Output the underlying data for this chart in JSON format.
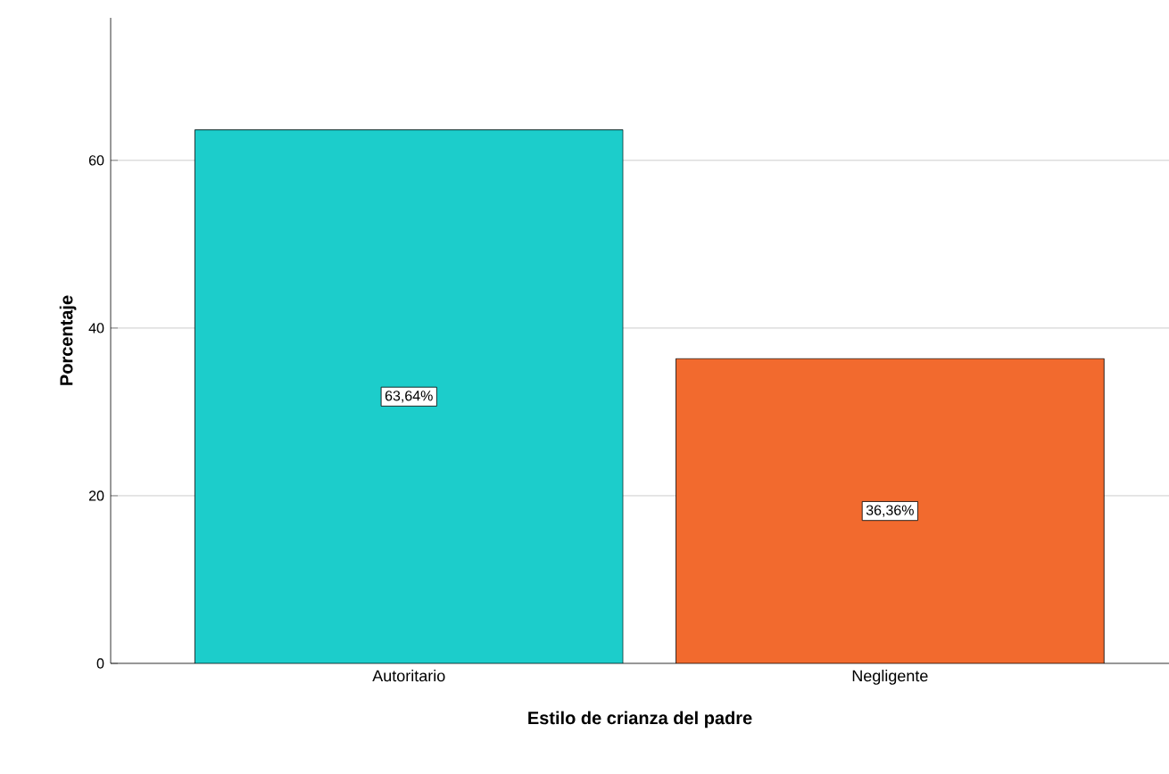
{
  "chart_data": {
    "type": "bar",
    "xlabel": "Estilo de crianza del padre",
    "ylabel": "Porcentaje",
    "categories": [
      "Autoritario",
      "Negligente"
    ],
    "values": [
      63.64,
      36.36
    ],
    "colors": [
      "#1ccdcb",
      "#f26a2e"
    ],
    "value_labels": [
      "63,64%",
      "36,36%"
    ],
    "ylim": [
      0,
      77
    ],
    "yticks": [
      0,
      20,
      40,
      60
    ],
    "grid": "y"
  }
}
